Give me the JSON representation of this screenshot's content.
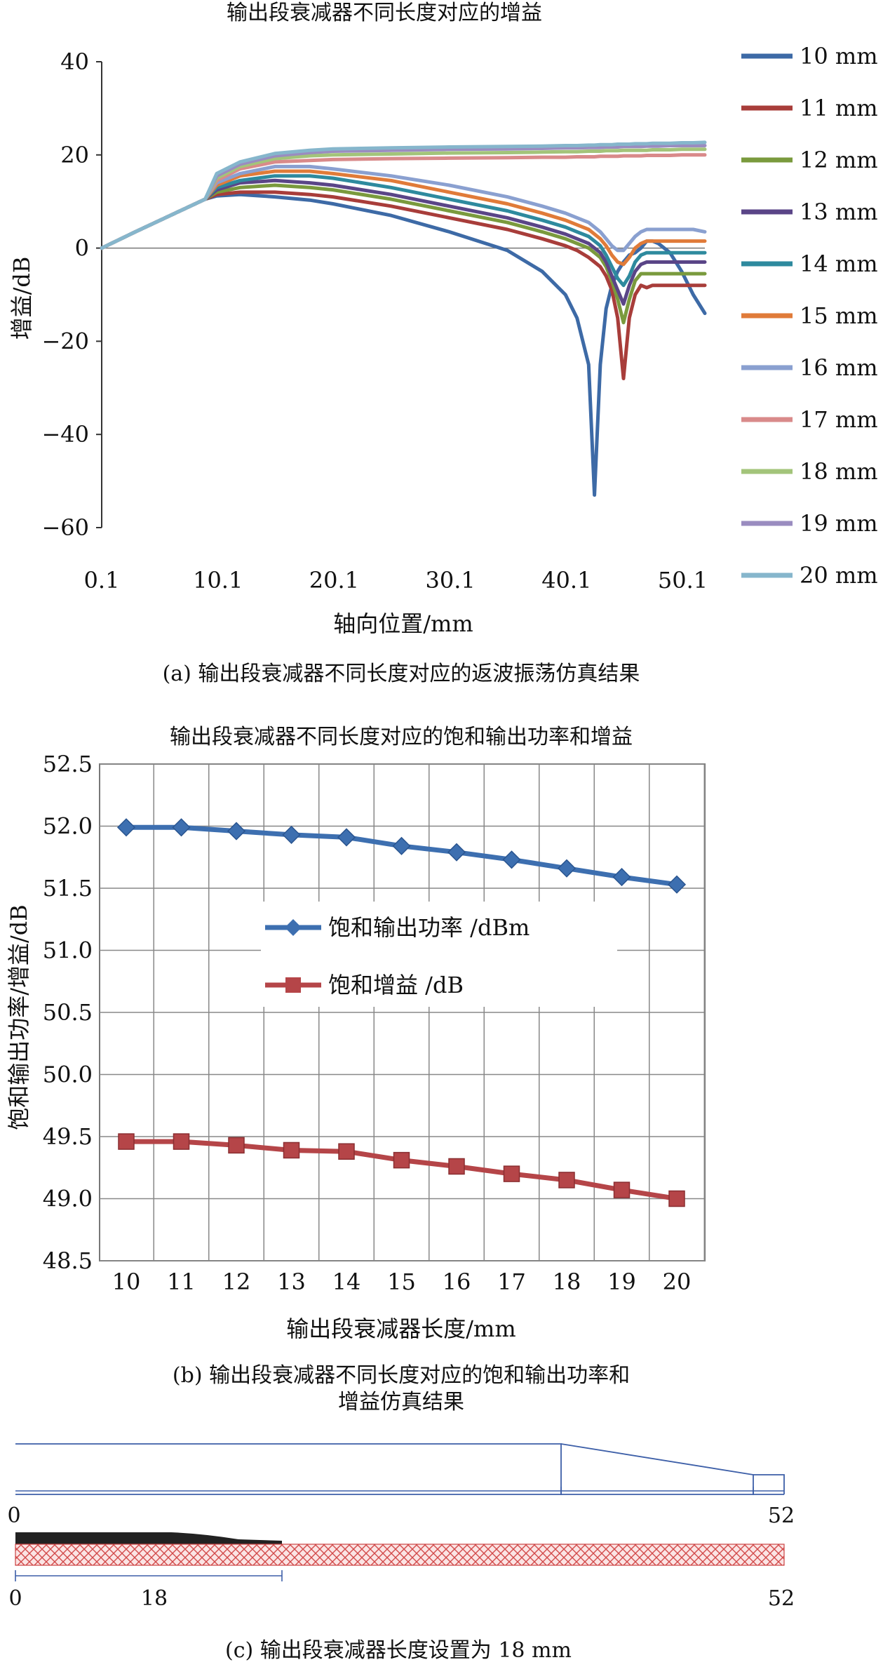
{
  "chart_data": [
    {
      "type": "line",
      "title": "输出段衰减器不同长度对应的增益",
      "xlabel": "轴向位置/mm",
      "ylabel": "增益/dB",
      "xticks": [
        "0.1",
        "10.1",
        "20.1",
        "30.1",
        "40.1",
        "50.1"
      ],
      "yticks": [
        "40",
        "20",
        "0",
        "−20",
        "−40",
        "−60"
      ],
      "xlim": [
        0.1,
        52
      ],
      "ylim": [
        -60,
        40
      ],
      "legend_position": "right",
      "caption": "(a) 输出段衰减器不同长度对应的返波振荡仿真结果",
      "x": [
        0.1,
        3,
        6,
        9,
        10,
        12,
        15,
        18,
        20,
        25,
        30,
        35,
        38,
        40,
        41,
        42,
        42.5,
        43,
        43.5,
        44,
        44.5,
        45,
        45.5,
        46,
        46.5,
        47,
        47.5,
        48,
        49,
        50,
        51,
        52
      ],
      "series": [
        {
          "name": "10 mm",
          "color": "#3d6aa6",
          "values": [
            0,
            3.5,
            7,
            10.5,
            11.2,
            11.5,
            11,
            10.3,
            9.5,
            7,
            3.5,
            -0.5,
            -5,
            -10,
            -15,
            -25,
            -53,
            -25,
            -13,
            -8,
            -5,
            -3,
            -1.5,
            -1,
            0,
            1.5,
            1.5,
            1,
            -1,
            -5,
            -10,
            -14
          ]
        },
        {
          "name": "11 mm",
          "color": "#a83d3a",
          "values": [
            0,
            3.5,
            7,
            10.5,
            11.5,
            12,
            12,
            11.5,
            11,
            9,
            6.5,
            4,
            2,
            0.5,
            -0.5,
            -2,
            -3,
            -4,
            -6,
            -9,
            -15,
            -28,
            -15,
            -10,
            -8,
            -8.5,
            -8,
            -8,
            -8,
            -8,
            -8,
            -8
          ]
        },
        {
          "name": "12 mm",
          "color": "#7a9a3d",
          "values": [
            0,
            3.5,
            7,
            10.5,
            12,
            13,
            13.5,
            13,
            12.5,
            10.5,
            8,
            5.5,
            3.5,
            2,
            1,
            0,
            -1,
            -2,
            -4,
            -7,
            -11,
            -16,
            -11,
            -7,
            -5.5,
            -5.5,
            -5.5,
            -5.5,
            -5.5,
            -5.5,
            -5.5,
            -5.5
          ]
        },
        {
          "name": "13 mm",
          "color": "#5a4587",
          "values": [
            0,
            3.5,
            7,
            10.5,
            12.5,
            14,
            14.5,
            14,
            13.5,
            11.5,
            9,
            6.5,
            4.5,
            3,
            2,
            1,
            0,
            -1,
            -3,
            -6,
            -9,
            -12,
            -8,
            -5,
            -3.5,
            -3,
            -3,
            -3,
            -3,
            -3,
            -3,
            -3
          ]
        },
        {
          "name": "14 mm",
          "color": "#2e8a9e",
          "values": [
            0,
            3.5,
            7,
            10.5,
            13,
            14.5,
            15.5,
            15.5,
            15,
            13,
            10.5,
            8,
            6,
            4.5,
            3.5,
            2.5,
            1.5,
            0.5,
            -1.5,
            -4,
            -6.5,
            -8,
            -6,
            -3,
            -1.5,
            -1,
            -1,
            -1,
            -1,
            -1,
            -1,
            -1
          ]
        },
        {
          "name": "15 mm",
          "color": "#e07b39",
          "values": [
            0,
            3.5,
            7,
            10.5,
            13.5,
            15.5,
            16.5,
            16.5,
            16,
            14.5,
            12,
            9.5,
            7.5,
            6,
            5,
            4,
            3,
            2,
            0.5,
            -1.5,
            -3,
            -3.5,
            -2,
            0,
            1,
            1.5,
            1.5,
            1.5,
            1.5,
            1.5,
            1.5,
            1.5
          ]
        },
        {
          "name": "16 mm",
          "color": "#8aa0d0",
          "values": [
            0,
            3.5,
            7,
            10.5,
            14,
            16,
            17.5,
            17.5,
            17,
            15.5,
            13.5,
            11,
            9,
            7.5,
            6.5,
            5.5,
            4.5,
            3.5,
            2,
            0.5,
            -0.5,
            -0.5,
            1,
            2.5,
            3.5,
            4,
            4,
            4,
            4,
            4,
            4,
            3.5
          ]
        },
        {
          "name": "17 mm",
          "color": "#d98a8a",
          "values": [
            0,
            3.5,
            7,
            10.5,
            14.5,
            17,
            18.5,
            18.8,
            19,
            19.2,
            19.3,
            19.4,
            19.5,
            19.5,
            19.6,
            19.6,
            19.6,
            19.7,
            19.7,
            19.7,
            19.7,
            19.8,
            19.8,
            19.8,
            19.8,
            19.9,
            19.9,
            19.9,
            19.9,
            20,
            20,
            20
          ]
        },
        {
          "name": "18 mm",
          "color": "#a3c47a",
          "values": [
            0,
            3.5,
            7,
            10.5,
            15,
            17.5,
            19.2,
            19.8,
            20,
            20.2,
            20.4,
            20.5,
            20.6,
            20.7,
            20.7,
            20.8,
            20.8,
            20.8,
            20.9,
            20.9,
            20.9,
            21,
            21,
            21,
            21,
            21,
            21.1,
            21.1,
            21.1,
            21.2,
            21.2,
            21.2
          ]
        },
        {
          "name": "19 mm",
          "color": "#9a8cc0",
          "values": [
            0,
            3.5,
            7,
            10.5,
            15.5,
            18,
            19.8,
            20.5,
            20.8,
            21,
            21.2,
            21.3,
            21.4,
            21.5,
            21.5,
            21.6,
            21.6,
            21.6,
            21.7,
            21.7,
            21.7,
            21.8,
            21.8,
            21.8,
            21.8,
            21.9,
            21.9,
            21.9,
            22,
            22,
            22,
            22
          ]
        },
        {
          "name": "20 mm",
          "color": "#86b6cc",
          "values": [
            0,
            3.5,
            7,
            10.5,
            16,
            18.5,
            20.3,
            21,
            21.3,
            21.5,
            21.7,
            21.8,
            21.9,
            22,
            22,
            22.1,
            22.1,
            22.2,
            22.2,
            22.2,
            22.3,
            22.3,
            22.3,
            22.4,
            22.4,
            22.4,
            22.5,
            22.5,
            22.5,
            22.6,
            22.6,
            22.7
          ]
        }
      ]
    },
    {
      "type": "line",
      "title": "输出段衰减器不同长度对应的饱和输出功率和增益",
      "xlabel": "输出段衰减器长度/mm",
      "ylabel": "饱和输出功率/增益/dB",
      "categories": [
        "10",
        "11",
        "12",
        "13",
        "14",
        "15",
        "16",
        "17",
        "18",
        "19",
        "20"
      ],
      "yticks": [
        "52.5",
        "52.0",
        "51.5",
        "51.0",
        "50.5",
        "50.0",
        "49.5",
        "49.0",
        "48.5"
      ],
      "ylim": [
        48.5,
        52.5
      ],
      "grid": true,
      "legend_position": "center",
      "caption_line1": "(b) 输出段衰减器不同长度对应的饱和输出功率和",
      "caption_line2": "增益仿真结果",
      "series": [
        {
          "name": "饱和输出功率 /dBm",
          "marker": "diamond",
          "color": "#3d6fb0",
          "values": [
            51.99,
            51.99,
            51.96,
            51.93,
            51.91,
            51.84,
            51.79,
            51.73,
            51.66,
            51.59,
            51.53
          ]
        },
        {
          "name": "饱和增益 /dB",
          "marker": "square",
          "color": "#b54548",
          "values": [
            49.46,
            49.46,
            49.43,
            49.39,
            49.38,
            49.31,
            49.26,
            49.2,
            49.15,
            49.07,
            49.0
          ]
        }
      ]
    },
    {
      "type": "diagram",
      "caption": "(c) 输出段衰减器长度设置为 18 mm",
      "labels": {
        "top_left": "0",
        "top_right": "52",
        "bottom_left": "0",
        "bottom_mid": "18",
        "bottom_right": "52"
      },
      "total_length": 52,
      "attenuator_length": 18
    }
  ]
}
